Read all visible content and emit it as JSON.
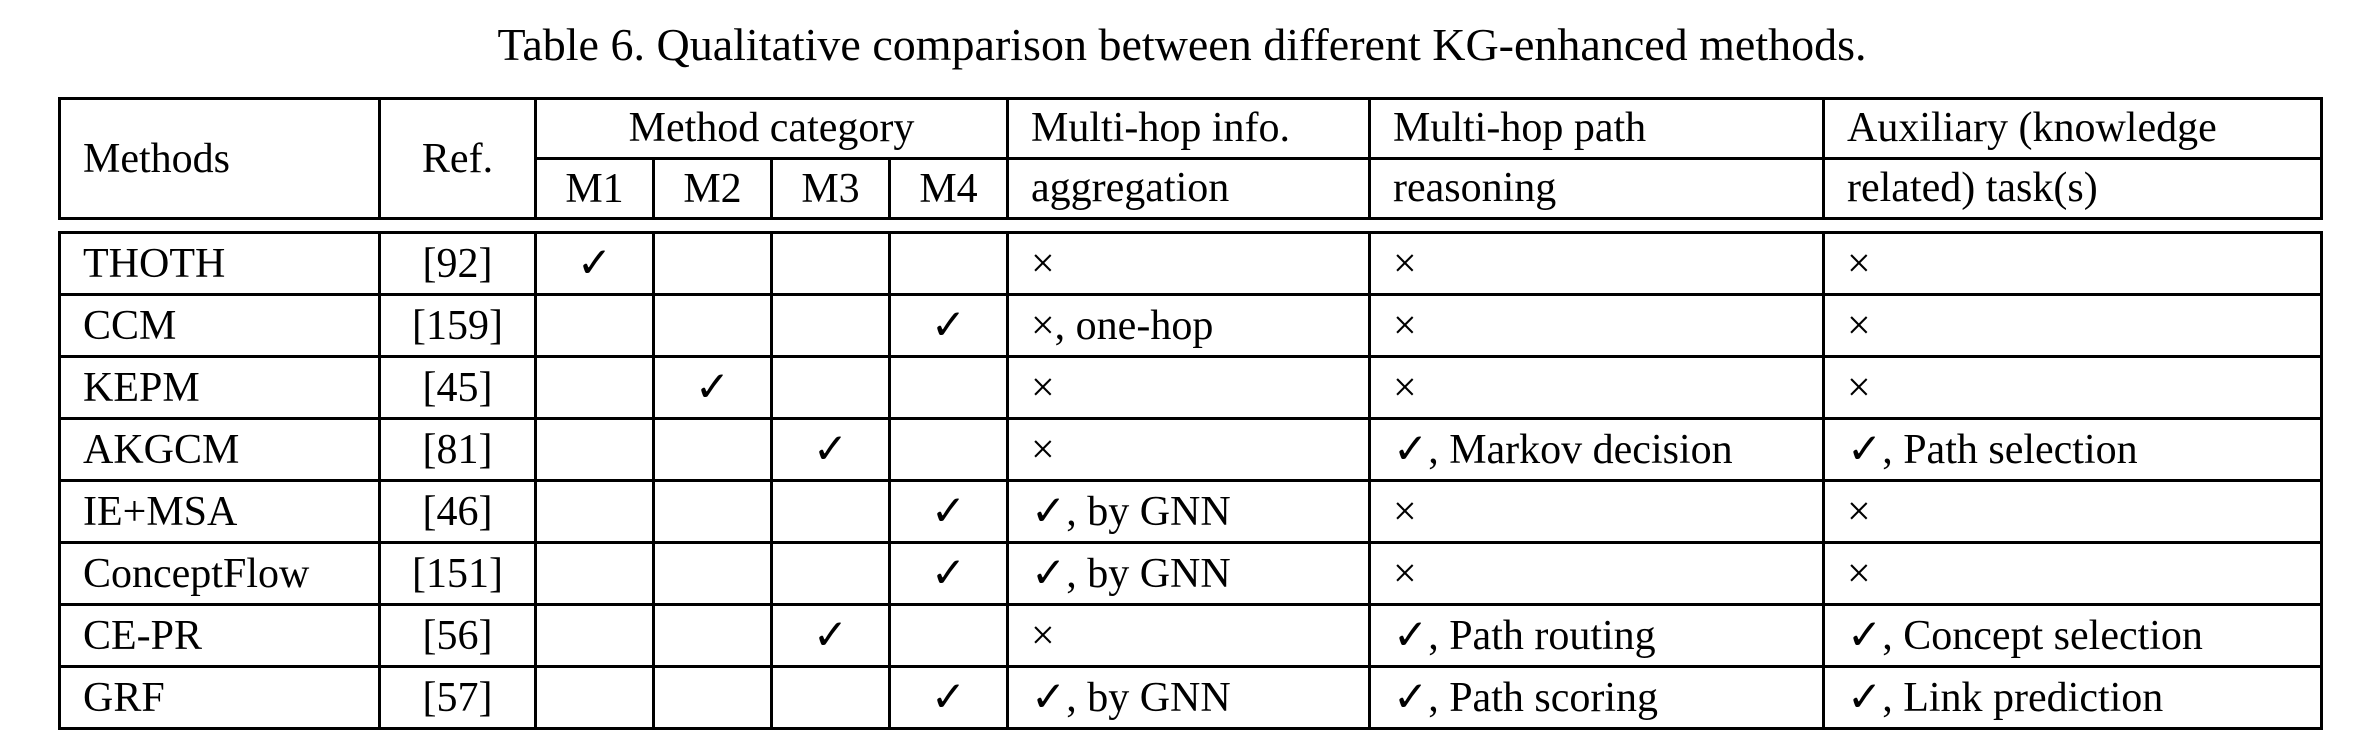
{
  "caption": "Table 6.  Qualitative comparison between different KG-enhanced methods.",
  "header": {
    "methods": "Methods",
    "ref": "Ref.",
    "method_category": "Method category",
    "m1": "M1",
    "m2": "M2",
    "m3": "M3",
    "m4": "M4",
    "multihop_info_1": "Multi-hop info.",
    "multihop_info_2": "aggregation",
    "multihop_path_1": "Multi-hop path",
    "multihop_path_2": "reasoning",
    "auxiliary_1": "Auxiliary (knowledge",
    "auxiliary_2": "related) task(s)"
  },
  "check_mark": "✓",
  "rows": [
    {
      "method": "THOTH",
      "ref": "[92]",
      "category": "M1",
      "info": "×",
      "path": "×",
      "aux": "×"
    },
    {
      "method": "CCM",
      "ref": "[159]",
      "category": "M4",
      "info": "×, one-hop",
      "path": "×",
      "aux": "×"
    },
    {
      "method": "KEPM",
      "ref": "[45]",
      "category": "M2",
      "info": "×",
      "path": "×",
      "aux": "×"
    },
    {
      "method": "AKGCM",
      "ref": "[81]",
      "category": "M3",
      "info": "×",
      "path": "✓, Markov decision",
      "aux": "✓, Path selection"
    },
    {
      "method": "IE+MSA",
      "ref": "[46]",
      "category": "M4",
      "info": "✓, by GNN",
      "path": "×",
      "aux": "×"
    },
    {
      "method": "ConceptFlow",
      "ref": "[151]",
      "category": "M4",
      "info": "✓, by GNN",
      "path": "×",
      "aux": "×"
    },
    {
      "method": "CE-PR",
      "ref": "[56]",
      "category": "M3",
      "info": "×",
      "path": "✓, Path routing",
      "aux": "✓, Concept selection"
    },
    {
      "method": "GRF",
      "ref": "[57]",
      "category": "M4",
      "info": "✓, by GNN",
      "path": "✓, Path scoring",
      "aux": "✓, Link prediction"
    }
  ]
}
